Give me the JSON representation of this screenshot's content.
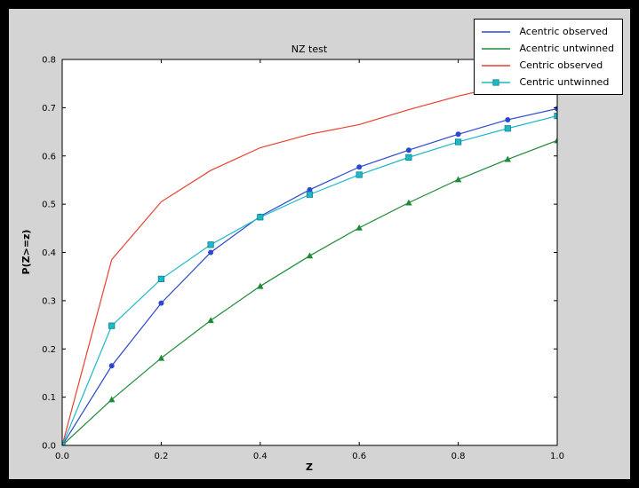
{
  "figure": {
    "outer_background": "#000000",
    "figure_background": "#d4d4d4",
    "axes_background": "#ffffff",
    "axes_edge_color": "#000000"
  },
  "chart_data": {
    "type": "line",
    "title": "NZ test",
    "xlabel": "Z",
    "ylabel": "P(Z>=z)",
    "xlim": [
      0.0,
      1.0
    ],
    "ylim": [
      0.0,
      0.8
    ],
    "grid": false,
    "legend_position": "upper right",
    "xticks": [
      0.0,
      0.2,
      0.4,
      0.6,
      0.8,
      1.0
    ],
    "xtick_labels": [
      "0.0",
      "0.2",
      "0.4",
      "0.6",
      "0.8",
      "1.0"
    ],
    "yticks": [
      0.0,
      0.1,
      0.2,
      0.3,
      0.4,
      0.5,
      0.6,
      0.7,
      0.8
    ],
    "ytick_labels": [
      "0.0",
      "0.1",
      "0.2",
      "0.3",
      "0.4",
      "0.5",
      "0.6",
      "0.7",
      "0.8"
    ],
    "x": [
      0.0,
      0.1,
      0.2,
      0.3,
      0.4,
      0.5,
      0.6,
      0.7,
      0.8,
      0.9,
      1.0
    ],
    "series": [
      {
        "name": "Acentric observed",
        "color": "#2b48cf",
        "marker": "circle",
        "marker_edge": "#1c33a8",
        "legend_marker": "none",
        "values": [
          0.0,
          0.165,
          0.295,
          0.4,
          0.475,
          0.53,
          0.577,
          0.612,
          0.645,
          0.675,
          0.698
        ]
      },
      {
        "name": "Acentric untwinned",
        "color": "#1d8a38",
        "marker": "triangle",
        "marker_edge": "#14682a",
        "legend_marker": "none",
        "values": [
          0.0,
          0.095,
          0.181,
          0.259,
          0.33,
          0.393,
          0.451,
          0.503,
          0.551,
          0.593,
          0.632
        ]
      },
      {
        "name": "Centric observed",
        "color": "#e8402f",
        "marker": "none",
        "marker_edge": "#b52e22",
        "legend_marker": "none",
        "values": [
          0.0,
          0.385,
          0.505,
          0.57,
          0.617,
          0.645,
          0.665,
          0.696,
          0.724,
          0.748,
          0.764
        ]
      },
      {
        "name": "Centric untwinned",
        "color": "#1db9c9",
        "marker": "square",
        "marker_edge": "#0d8391",
        "legend_marker": "square",
        "values": [
          0.0,
          0.248,
          0.345,
          0.416,
          0.473,
          0.52,
          0.561,
          0.597,
          0.629,
          0.657,
          0.683
        ]
      }
    ]
  }
}
